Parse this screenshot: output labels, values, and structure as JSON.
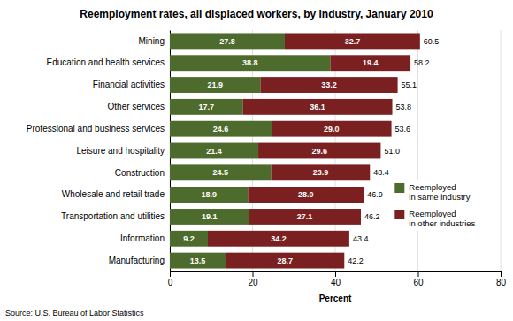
{
  "chart_data": {
    "type": "bar",
    "orientation": "horizontal",
    "stacked": true,
    "title": "Reemployment rates, all displaced workers, by industry, January 2010",
    "categories": [
      "Mining",
      "Education and health services",
      "Financial activities",
      "Other services",
      "Professional and business services",
      "Leisure and hospitality",
      "Construction",
      "Wholesale and retail trade",
      "Transportation and utilities",
      "Information",
      "Manufacturing"
    ],
    "series": [
      {
        "name": "Reemployed\nin same industry",
        "color": "#4d6b2c",
        "values": [
          27.8,
          38.8,
          21.9,
          17.7,
          24.6,
          21.4,
          24.5,
          18.9,
          19.1,
          9.2,
          13.5
        ]
      },
      {
        "name": "Reemployed\nin other industries",
        "color": "#7b2020",
        "values": [
          32.7,
          19.4,
          33.2,
          36.1,
          29.0,
          29.6,
          23.9,
          28.0,
          27.1,
          34.2,
          28.7
        ],
        "value_labels": [
          "32.7",
          "19.4",
          "33.2",
          "36.1",
          "29.0",
          "29.6",
          "23.9",
          "28.0",
          "27.1",
          "34.2",
          "28.7"
        ]
      }
    ],
    "totals": [
      60.5,
      58.2,
      55.1,
      53.8,
      53.6,
      51.0,
      48.4,
      46.9,
      46.2,
      43.4,
      42.2
    ],
    "total_labels": [
      "60.5",
      "58.2",
      "55.1",
      "53.8",
      "53.6",
      "51.0",
      "48.4",
      "46.9",
      "46.2",
      "43.4",
      "42.2"
    ],
    "xlim": [
      0,
      80
    ],
    "xticks": [
      0,
      20,
      40,
      60,
      80
    ],
    "xlabel": "Percent",
    "source": "Source: U.S. Bureau of Labor Statistics",
    "grid": true,
    "legend": "lower right",
    "data_labels": true
  }
}
